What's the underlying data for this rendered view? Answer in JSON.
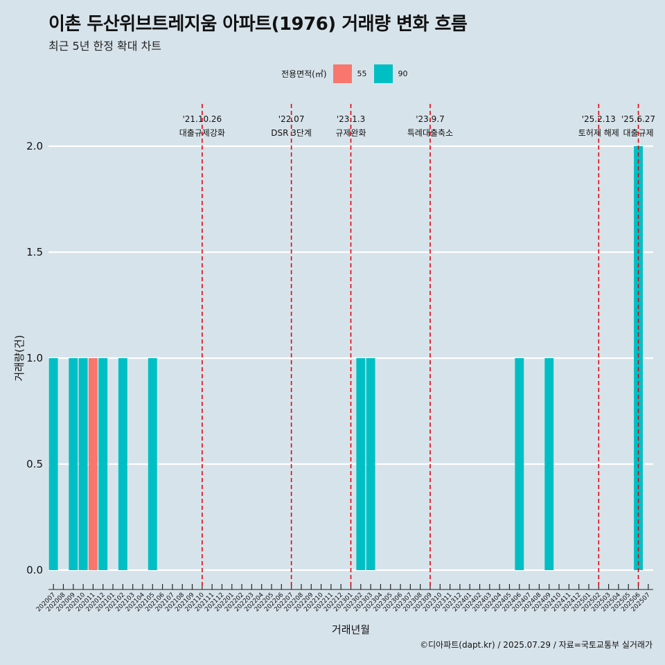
{
  "chart_data": {
    "type": "bar",
    "title": "이촌 두산위브트레지움 아파트(1976) 거래량 변화 흐름",
    "subtitle": "최근 5년 한정 확대 차트",
    "xlabel": "거래년월",
    "ylabel": "거래량(건)",
    "ylim": [
      0,
      2.0
    ],
    "yticks": [
      "0.0",
      "0.5",
      "1.0",
      "1.5",
      "2.0"
    ],
    "grid": true,
    "legend": {
      "title": "전용면적(㎡)",
      "position": "top",
      "entries": [
        {
          "label": "55",
          "color": "#F8766D"
        },
        {
          "label": "90",
          "color": "#00BFC4"
        }
      ]
    },
    "categories": [
      "202007",
      "202008",
      "202009",
      "202010",
      "202011",
      "202012",
      "202101",
      "202102",
      "202103",
      "202104",
      "202105",
      "202106",
      "202107",
      "202108",
      "202109",
      "202110",
      "202111",
      "202112",
      "202201",
      "202202",
      "202203",
      "202204",
      "202205",
      "202206",
      "202207",
      "202208",
      "202209",
      "202210",
      "202211",
      "202212",
      "202301",
      "202302",
      "202303",
      "202304",
      "202305",
      "202306",
      "202307",
      "202308",
      "202309",
      "202310",
      "202311",
      "202312",
      "202401",
      "202402",
      "202403",
      "202404",
      "202405",
      "202406",
      "202407",
      "202408",
      "202409",
      "202410",
      "202411",
      "202412",
      "202501",
      "202502",
      "202503",
      "202504",
      "202505",
      "202506",
      "202507"
    ],
    "series": [
      {
        "name": "55",
        "color": "#F8766D",
        "values": [
          0,
          0,
          0,
          0,
          1,
          0,
          0,
          0,
          0,
          0,
          0,
          0,
          0,
          0,
          0,
          0,
          0,
          0,
          0,
          0,
          0,
          0,
          0,
          0,
          0,
          0,
          0,
          0,
          0,
          0,
          0,
          0,
          0,
          0,
          0,
          0,
          0,
          0,
          0,
          0,
          0,
          0,
          0,
          0,
          0,
          0,
          0,
          0,
          0,
          0,
          0,
          0,
          0,
          0,
          0,
          0,
          0,
          0,
          0,
          0,
          0
        ]
      },
      {
        "name": "90",
        "color": "#00BFC4",
        "values": [
          1,
          0,
          1,
          1,
          0,
          1,
          0,
          1,
          0,
          0,
          1,
          0,
          0,
          0,
          0,
          0,
          0,
          0,
          0,
          0,
          0,
          0,
          0,
          0,
          0,
          0,
          0,
          0,
          0,
          0,
          0,
          1,
          1,
          0,
          0,
          0,
          0,
          0,
          0,
          0,
          0,
          0,
          0,
          0,
          0,
          0,
          0,
          1,
          0,
          0,
          1,
          0,
          0,
          0,
          0,
          0,
          0,
          0,
          0,
          2,
          0
        ]
      }
    ],
    "annotations": [
      {
        "x": "202110",
        "date": "'21.10.26",
        "label": "대출규제강화"
      },
      {
        "x": "202207",
        "date": "'22.07",
        "label": "DSR 3단계"
      },
      {
        "x": "202301",
        "date": "'23.1.3",
        "label": "규제완화"
      },
      {
        "x": "202309",
        "date": "'23.9.7",
        "label": "특례대출축소"
      },
      {
        "x": "202502",
        "date": "'25.2.13",
        "label": "토허제 해제"
      },
      {
        "x": "202506",
        "date": "'25.6.27",
        "label": "대출규제"
      }
    ],
    "caption": "©디아파트(dapt.kr) / 2025.07.29 / 자료=국토교통부 실거래가"
  },
  "colors": {
    "background": "#d7e3ea",
    "grid": "#ffffff",
    "vline": "#e8000b"
  }
}
